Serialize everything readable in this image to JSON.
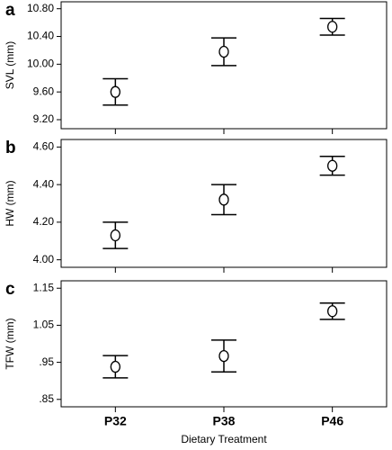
{
  "chart_data": [
    {
      "type": "errorbar",
      "panel_label": "a",
      "y_label": "SVL (mm)",
      "ylim": [
        9.07,
        10.9
      ],
      "yticks": [
        {
          "value": 9.2,
          "label": "9.20"
        },
        {
          "value": 9.6,
          "label": "9.60"
        },
        {
          "value": 10.0,
          "label": "10.00"
        },
        {
          "value": 10.4,
          "label": "10.40"
        },
        {
          "value": 10.8,
          "label": "10.80"
        }
      ],
      "values": [
        9.6,
        10.18,
        10.54
      ],
      "errors": [
        0.19,
        0.2,
        0.12
      ]
    },
    {
      "type": "errorbar",
      "panel_label": "b",
      "y_label": "HW (mm)",
      "ylim": [
        3.96,
        4.64
      ],
      "yticks": [
        {
          "value": 4.0,
          "label": "4.00"
        },
        {
          "value": 4.2,
          "label": "4.20"
        },
        {
          "value": 4.4,
          "label": "4.40"
        },
        {
          "value": 4.6,
          "label": "4.60"
        }
      ],
      "values": [
        4.13,
        4.32,
        4.5
      ],
      "errors": [
        0.07,
        0.08,
        0.05
      ]
    },
    {
      "type": "errorbar",
      "panel_label": "c",
      "y_label": "TFW (mm)",
      "ylim": [
        0.83,
        1.17
      ],
      "yticks": [
        {
          "value": 0.85,
          "label": ".85"
        },
        {
          "value": 0.95,
          "label": ".95"
        },
        1.05,
        1.15
      ],
      "values": [
        0.938,
        0.967,
        1.088
      ],
      "errors": [
        0.03,
        0.043,
        0.022
      ],
      "categories": [
        "P32",
        "P38",
        "P46"
      ],
      "x_label": "Dietary Treatment"
    }
  ]
}
